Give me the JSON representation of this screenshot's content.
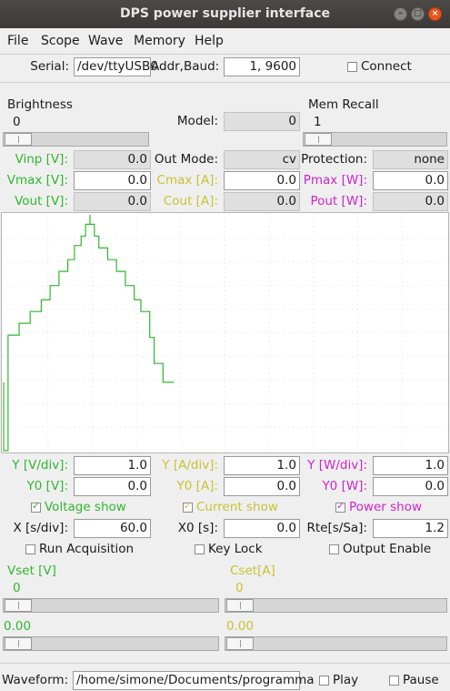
{
  "window": {
    "title": "DPS power supplier interface"
  },
  "menu": [
    "File",
    "Scope",
    "Wave",
    "Memory",
    "Help"
  ],
  "connection": {
    "serial_label": "Serial:",
    "serial_value": "/dev/ttyUSB0",
    "addr_label": "Addr,Baud:",
    "addr_value": "1, 9600",
    "connect_label": "Connect",
    "connect_checked": false
  },
  "brightness": {
    "label": "Brightness",
    "value": "0",
    "slider_fraction": 0.0
  },
  "model": {
    "label": "Model:",
    "value": "0"
  },
  "mem_recall": {
    "label": "Mem Recall",
    "value": "1",
    "slider_fraction": 0.0
  },
  "readings": {
    "vinp_label": "Vinp [V]:",
    "vinp_value": "0.0",
    "outmode_label": "Out Mode:",
    "outmode_value": "cv",
    "protection_label": "Protection:",
    "protection_value": "none",
    "vmax_label": "Vmax [V]:",
    "vmax_value": "0.0",
    "cmax_label": "Cmax [A]:",
    "cmax_value": "0.0",
    "pmax_label": "Pmax [W]:",
    "pmax_value": "0.0",
    "vout_label": "Vout [V]:",
    "vout_value": "0.0",
    "cout_label": "Cout [A]:",
    "cout_value": "0.0",
    "pout_label": "Pout [W]:",
    "pout_value": "0.0"
  },
  "colors": {
    "voltage": "#2eb82e",
    "current": "#c9c232",
    "power": "#cc26cc"
  },
  "scope_settings": {
    "yv_label": "Y [V/div]:",
    "yv_value": "1.0",
    "ya_label": "Y [A/div]:",
    "ya_value": "1.0",
    "yw_label": "Y [W/div]:",
    "yw_value": "1.0",
    "y0v_label": "Y0 [V]:",
    "y0v_value": "0.0",
    "y0a_label": "Y0 [A]:",
    "y0a_value": "0.0",
    "y0w_label": "Y0 [W]:",
    "y0w_value": "0.0",
    "voltage_show_label": "Voltage show",
    "voltage_show_checked": true,
    "current_show_label": "Current show",
    "current_show_checked": true,
    "power_show_label": "Power show",
    "power_show_checked": true,
    "x_label": "X [s/div]:",
    "x_value": "60.0",
    "x0_label": "X0 [s]:",
    "x0_value": "0.0",
    "rte_label": "Rte[s/Sa]:",
    "rte_value": "1.2",
    "run_acq_label": "Run Acquisition",
    "run_acq_checked": false,
    "key_lock_label": "Key Lock",
    "key_lock_checked": false,
    "output_enable_label": "Output Enable",
    "output_enable_checked": false
  },
  "setpoints": {
    "vset_label": "Vset [V]",
    "vset_value": "0",
    "vset_fine": "0.00",
    "cset_label": "Cset[A]",
    "cset_value": "0",
    "cset_fine": "0.00"
  },
  "waveform": {
    "label": "Waveform:",
    "path": "/home/simone/Documents/programma",
    "play_label": "Play",
    "play_checked": false,
    "pause_label": "Pause",
    "pause_checked": false
  },
  "chart_data": {
    "type": "line",
    "grid": true,
    "grid_divisions": {
      "x": 10,
      "y": 10
    },
    "xlim": [
      0,
      10
    ],
    "ylim": [
      0,
      10
    ],
    "series": [
      {
        "color": "#2eb82e",
        "points": [
          [
            0.0,
            2.9
          ],
          [
            0.0,
            0.0
          ],
          [
            0.1,
            0.0
          ],
          [
            0.1,
            4.9
          ],
          [
            0.35,
            4.9
          ],
          [
            0.35,
            5.4
          ],
          [
            0.6,
            5.4
          ],
          [
            0.6,
            5.9
          ],
          [
            0.85,
            5.9
          ],
          [
            0.85,
            6.4
          ],
          [
            1.05,
            6.4
          ],
          [
            1.05,
            7.0
          ],
          [
            1.25,
            7.0
          ],
          [
            1.25,
            7.6
          ],
          [
            1.45,
            7.6
          ],
          [
            1.45,
            8.1
          ],
          [
            1.6,
            8.1
          ],
          [
            1.6,
            8.7
          ],
          [
            1.75,
            8.7
          ],
          [
            1.75,
            9.1
          ],
          [
            1.85,
            9.1
          ],
          [
            1.85,
            9.6
          ],
          [
            1.95,
            9.6
          ],
          [
            1.95,
            10.0
          ],
          [
            1.95,
            9.6
          ],
          [
            2.05,
            9.6
          ],
          [
            2.05,
            9.1
          ],
          [
            2.15,
            9.1
          ],
          [
            2.15,
            8.6
          ],
          [
            2.35,
            8.6
          ],
          [
            2.35,
            8.1
          ],
          [
            2.55,
            8.1
          ],
          [
            2.55,
            7.6
          ],
          [
            2.75,
            7.6
          ],
          [
            2.75,
            7.0
          ],
          [
            2.95,
            7.0
          ],
          [
            2.95,
            6.4
          ],
          [
            3.1,
            6.4
          ],
          [
            3.1,
            5.9
          ],
          [
            3.3,
            5.9
          ],
          [
            3.3,
            4.8
          ],
          [
            3.4,
            4.8
          ],
          [
            3.4,
            3.7
          ],
          [
            3.6,
            3.7
          ],
          [
            3.6,
            2.9
          ],
          [
            3.85,
            2.9
          ]
        ]
      }
    ]
  }
}
